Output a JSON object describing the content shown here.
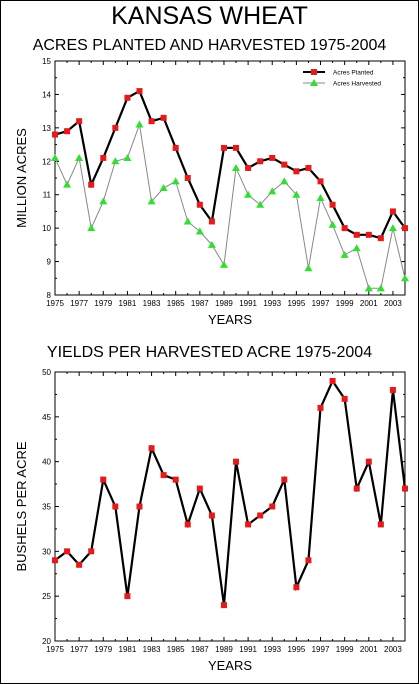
{
  "main_title": "KANSAS WHEAT",
  "chart_data": [
    {
      "type": "line",
      "title": "ACRES PLANTED AND HARVESTED 1975-2004",
      "xlabel": "YEARS",
      "ylabel": "MILLION ACRES",
      "xlim": [
        1975,
        2004
      ],
      "ylim": [
        8,
        15
      ],
      "x_ticks": [
        "1975",
        "1977",
        "1979",
        "1981",
        "1983",
        "1985",
        "1987",
        "1989",
        "1991",
        "1993",
        "1995",
        "1997",
        "1999",
        "2001",
        "2003"
      ],
      "y_ticks": [
        "8",
        "9",
        "10",
        "11",
        "12",
        "13",
        "14",
        "15"
      ],
      "x": [
        1975,
        1976,
        1977,
        1978,
        1979,
        1980,
        1981,
        1982,
        1983,
        1984,
        1985,
        1986,
        1987,
        1988,
        1989,
        1990,
        1991,
        1992,
        1993,
        1994,
        1995,
        1996,
        1997,
        1998,
        1999,
        2000,
        2001,
        2002,
        2003,
        2004
      ],
      "series": [
        {
          "name": "Acres Planted",
          "color": "#000000",
          "marker": "square",
          "marker_color": "#e31b1b",
          "values": [
            12.8,
            12.9,
            13.2,
            11.3,
            12.1,
            13.0,
            13.9,
            14.1,
            13.2,
            13.3,
            12.4,
            11.5,
            10.7,
            10.2,
            12.4,
            12.4,
            11.8,
            12.0,
            12.1,
            11.9,
            11.7,
            11.8,
            11.4,
            10.7,
            10.0,
            9.8,
            9.8,
            9.7,
            10.5,
            10.0
          ]
        },
        {
          "name": "Acres Harvested",
          "color": "#888888",
          "marker": "triangle",
          "marker_color": "#33dd33",
          "values": [
            12.1,
            11.3,
            12.1,
            10.0,
            10.8,
            12.0,
            12.1,
            13.1,
            10.8,
            11.2,
            11.4,
            10.2,
            9.9,
            9.5,
            8.9,
            11.8,
            11.0,
            10.7,
            11.1,
            11.4,
            11.0,
            8.8,
            10.9,
            10.1,
            9.2,
            9.4,
            8.2,
            8.2,
            10.0,
            8.5
          ]
        }
      ],
      "legend_position": "top-right",
      "grid": false
    },
    {
      "type": "line",
      "title": "YIELDS PER HARVESTED ACRE 1975-2004",
      "xlabel": "YEARS",
      "ylabel": "BUSHELS PER ACRE",
      "xlim": [
        1975,
        2004
      ],
      "ylim": [
        20,
        50
      ],
      "x_ticks": [
        "1975",
        "1977",
        "1979",
        "1981",
        "1983",
        "1985",
        "1987",
        "1989",
        "1991",
        "1993",
        "1995",
        "1997",
        "1999",
        "2001",
        "2003"
      ],
      "y_ticks": [
        "20",
        "25",
        "30",
        "35",
        "40",
        "45",
        "50"
      ],
      "x": [
        1975,
        1976,
        1977,
        1978,
        1979,
        1980,
        1981,
        1982,
        1983,
        1984,
        1985,
        1986,
        1987,
        1988,
        1989,
        1990,
        1991,
        1992,
        1993,
        1994,
        1995,
        1996,
        1997,
        1998,
        1999,
        2000,
        2001,
        2002,
        2003,
        2004
      ],
      "series": [
        {
          "color": "#000000",
          "marker": "square",
          "marker_color": "#e31b1b",
          "values": [
            29,
            30,
            28.5,
            30,
            38,
            35,
            25,
            35,
            41.5,
            38.5,
            38,
            33,
            37,
            34,
            24,
            40,
            33,
            34,
            35,
            38,
            26,
            29,
            46,
            49,
            47,
            37,
            40,
            33,
            48,
            37
          ]
        }
      ],
      "grid": false
    }
  ]
}
